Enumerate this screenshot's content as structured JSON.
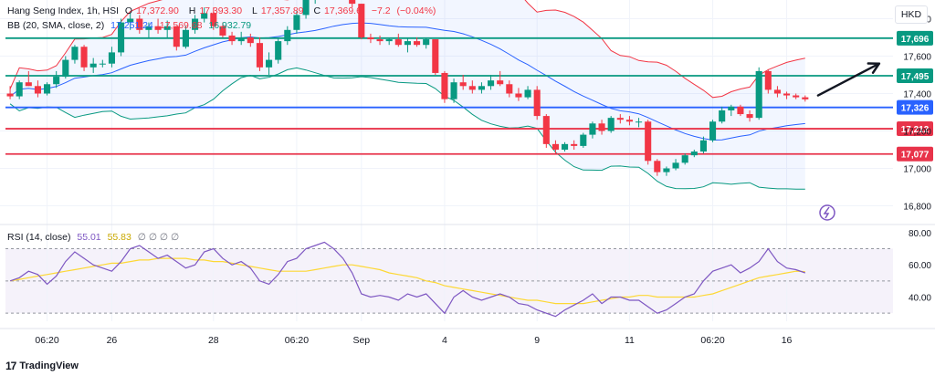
{
  "header": {
    "symbol_line": "Hang Seng Index, 1h, HSI",
    "open_label": "O",
    "open": "17,372.90",
    "high_label": "H",
    "high": "17,393.30",
    "low_label": "L",
    "low": "17,357.89",
    "close_label": "C",
    "close": "17,369.6",
    "change": "−7.2",
    "change_pct": "(−0.04%)",
    "bb_line": "BB (20, SMA, close, 2)",
    "bb_basis": "17,251.24",
    "bb_upper": "17,569.68",
    "bb_lower": "16,932.79",
    "rsi_line": "RSI (14, close)",
    "rsi_value": "55.01",
    "rsi_ma": "55.83",
    "rsi_extra": "∅ ∅ ∅ ∅",
    "currency": "HKD"
  },
  "brand": {
    "logo": "17",
    "name": "TradingView"
  },
  "colors": {
    "up": "#089981",
    "down": "#f23645",
    "bb_basis": "#2962ff",
    "bb_upper": "#f23645",
    "bb_lower": "#089981",
    "rsi_line": "#7e57c2",
    "rsi_ma": "#fdd835",
    "level_green": "#089981",
    "level_red": "#e8334a",
    "level_blue": "#2962ff"
  },
  "chart_data": [
    {
      "type": "candlestick",
      "title": "Hang Seng Index, 1h, HSI",
      "ylim": [
        16700,
        17900
      ],
      "y_ticks": [
        16800,
        17000,
        17200,
        17400,
        17600,
        17800
      ],
      "y_tick_labels": [
        "16,800",
        "17,000",
        "17,200",
        "17,400",
        "17,600",
        "17,800"
      ],
      "x_tick_labels": [
        "06:20",
        "26",
        "28",
        "06:20",
        "Sep",
        "4",
        "9",
        "11",
        "06:20",
        "16"
      ],
      "x_tick_index": [
        4,
        11,
        22,
        31,
        38,
        47,
        57,
        67,
        76,
        84
      ],
      "price_levels": [
        {
          "value": 17696,
          "label": "17,696",
          "color": "green"
        },
        {
          "value": 17495,
          "label": "17,495",
          "color": "green"
        },
        {
          "value": 17326,
          "label": "17,326",
          "color": "blue"
        },
        {
          "value": 17212,
          "label": "17,212",
          "color": "red"
        },
        {
          "value": 17077,
          "label": "17,077",
          "color": "red"
        }
      ],
      "candles": [
        [
          17400,
          17440,
          17370,
          17385
        ],
        [
          17385,
          17470,
          17370,
          17460
        ],
        [
          17460,
          17520,
          17440,
          17440
        ],
        [
          17440,
          17470,
          17380,
          17400
        ],
        [
          17400,
          17460,
          17390,
          17450
        ],
        [
          17450,
          17520,
          17430,
          17490
        ],
        [
          17490,
          17600,
          17480,
          17580
        ],
        [
          17580,
          17660,
          17560,
          17650
        ],
        [
          17650,
          17660,
          17520,
          17540
        ],
        [
          17540,
          17590,
          17510,
          17560
        ],
        [
          17560,
          17580,
          17540,
          17560
        ],
        [
          17560,
          17650,
          17540,
          17620
        ],
        [
          17620,
          17800,
          17600,
          17780
        ],
        [
          17780,
          17830,
          17740,
          17800
        ],
        [
          17800,
          17820,
          17720,
          17740
        ],
        [
          17740,
          17780,
          17700,
          17760
        ],
        [
          17760,
          17800,
          17720,
          17740
        ],
        [
          17740,
          17790,
          17700,
          17760
        ],
        [
          17760,
          17760,
          17630,
          17650
        ],
        [
          17650,
          17760,
          17640,
          17740
        ],
        [
          17740,
          17820,
          17720,
          17800
        ],
        [
          17800,
          17860,
          17780,
          17830
        ],
        [
          17830,
          17860,
          17740,
          17760
        ],
        [
          17760,
          17780,
          17700,
          17710
        ],
        [
          17710,
          17730,
          17660,
          17680
        ],
        [
          17680,
          17730,
          17660,
          17700
        ],
        [
          17700,
          17720,
          17650,
          17670
        ],
        [
          17670,
          17700,
          17520,
          17540
        ],
        [
          17540,
          17620,
          17500,
          17580
        ],
        [
          17580,
          17700,
          17560,
          17680
        ],
        [
          17680,
          17760,
          17660,
          17740
        ],
        [
          17740,
          17840,
          17720,
          17820
        ],
        [
          17820,
          17920,
          17800,
          17900
        ],
        [
          17900,
          17960,
          17880,
          17940
        ],
        [
          17940,
          17990,
          17920,
          17970
        ],
        [
          17970,
          18000,
          17940,
          17990
        ],
        [
          17990,
          18010,
          17900,
          17920
        ],
        [
          17920,
          17940,
          17860,
          17880
        ],
        [
          17880,
          17880,
          17690,
          17700
        ],
        [
          17700,
          17720,
          17670,
          17690
        ],
        [
          17690,
          17710,
          17660,
          17680
        ],
        [
          17680,
          17700,
          17660,
          17690
        ],
        [
          17690,
          17720,
          17650,
          17660
        ],
        [
          17660,
          17700,
          17620,
          17680
        ],
        [
          17680,
          17700,
          17650,
          17660
        ],
        [
          17660,
          17700,
          17640,
          17690
        ],
        [
          17690,
          17690,
          17500,
          17510
        ],
        [
          17510,
          17520,
          17350,
          17370
        ],
        [
          17370,
          17480,
          17350,
          17460
        ],
        [
          17460,
          17500,
          17420,
          17440
        ],
        [
          17440,
          17470,
          17400,
          17420
        ],
        [
          17420,
          17460,
          17400,
          17440
        ],
        [
          17440,
          17500,
          17420,
          17470
        ],
        [
          17470,
          17520,
          17440,
          17450
        ],
        [
          17450,
          17470,
          17380,
          17400
        ],
        [
          17400,
          17430,
          17360,
          17380
        ],
        [
          17380,
          17440,
          17370,
          17420
        ],
        [
          17420,
          17440,
          17260,
          17280
        ],
        [
          17280,
          17290,
          17110,
          17130
        ],
        [
          17130,
          17150,
          17080,
          17100
        ],
        [
          17100,
          17140,
          17090,
          17130
        ],
        [
          17130,
          17150,
          17100,
          17120
        ],
        [
          17120,
          17190,
          17110,
          17180
        ],
        [
          17180,
          17250,
          17160,
          17240
        ],
        [
          17240,
          17260,
          17180,
          17200
        ],
        [
          17200,
          17280,
          17190,
          17270
        ],
        [
          17270,
          17290,
          17240,
          17260
        ],
        [
          17260,
          17280,
          17230,
          17250
        ],
        [
          17250,
          17270,
          17220,
          17250
        ],
        [
          17250,
          17260,
          17020,
          17040
        ],
        [
          17040,
          17050,
          16960,
          16980
        ],
        [
          16980,
          17010,
          16960,
          17000
        ],
        [
          17000,
          17050,
          16990,
          17030
        ],
        [
          17030,
          17080,
          17020,
          17070
        ],
        [
          17070,
          17100,
          17060,
          17090
        ],
        [
          17090,
          17170,
          17080,
          17150
        ],
        [
          17150,
          17260,
          17140,
          17250
        ],
        [
          17250,
          17330,
          17240,
          17310
        ],
        [
          17310,
          17340,
          17280,
          17330
        ],
        [
          17330,
          17340,
          17280,
          17290
        ],
        [
          17290,
          17310,
          17250,
          17270
        ],
        [
          17270,
          17540,
          17260,
          17520
        ],
        [
          17520,
          17530,
          17400,
          17420
        ],
        [
          17420,
          17440,
          17380,
          17400
        ],
        [
          17400,
          17410,
          17370,
          17390
        ],
        [
          17390,
          17400,
          17370,
          17380
        ],
        [
          17380,
          17390,
          17357,
          17369
        ]
      ]
    },
    {
      "type": "line",
      "title": "RSI (14, close)",
      "ylim": [
        25,
        85
      ],
      "y_ticks": [
        40,
        60,
        80
      ],
      "y_tick_labels": [
        "40.00",
        "60.00",
        "80.00"
      ],
      "band": [
        30,
        70
      ],
      "series": [
        {
          "role": "rsi",
          "values": [
            50,
            52,
            56,
            54,
            48,
            53,
            62,
            68,
            64,
            60,
            58,
            56,
            62,
            70,
            72,
            68,
            64,
            66,
            62,
            58,
            60,
            68,
            70,
            64,
            60,
            62,
            58,
            50,
            48,
            54,
            62,
            64,
            70,
            72,
            74,
            70,
            64,
            55,
            42,
            40,
            41,
            40,
            38,
            42,
            40,
            42,
            36,
            30,
            40,
            44,
            40,
            38,
            40,
            42,
            40,
            36,
            35,
            32,
            30,
            28,
            32,
            35,
            38,
            42,
            36,
            40,
            40,
            38,
            38,
            34,
            30,
            32,
            36,
            40,
            42,
            50,
            56,
            58,
            60,
            55,
            58,
            62,
            70,
            62,
            58,
            57,
            55
          ]
        },
        {
          "role": "ma",
          "values": [
            50,
            51,
            52,
            53,
            54,
            55,
            56,
            57,
            58,
            59,
            60,
            61,
            61,
            62,
            63,
            63,
            64,
            64,
            64,
            64,
            63,
            63,
            62,
            62,
            61,
            60,
            59,
            58,
            57,
            56,
            56,
            56,
            56,
            57,
            58,
            59,
            60,
            60,
            59,
            58,
            57,
            55,
            54,
            53,
            52,
            50,
            49,
            47,
            46,
            45,
            44,
            43,
            42,
            41,
            40,
            39,
            38,
            38,
            37,
            36,
            36,
            36,
            36,
            37,
            38,
            39,
            40,
            40,
            41,
            41,
            40,
            40,
            40,
            40,
            40,
            41,
            42,
            44,
            46,
            48,
            50,
            52,
            53,
            54,
            55,
            56,
            55.8
          ]
        }
      ]
    }
  ]
}
